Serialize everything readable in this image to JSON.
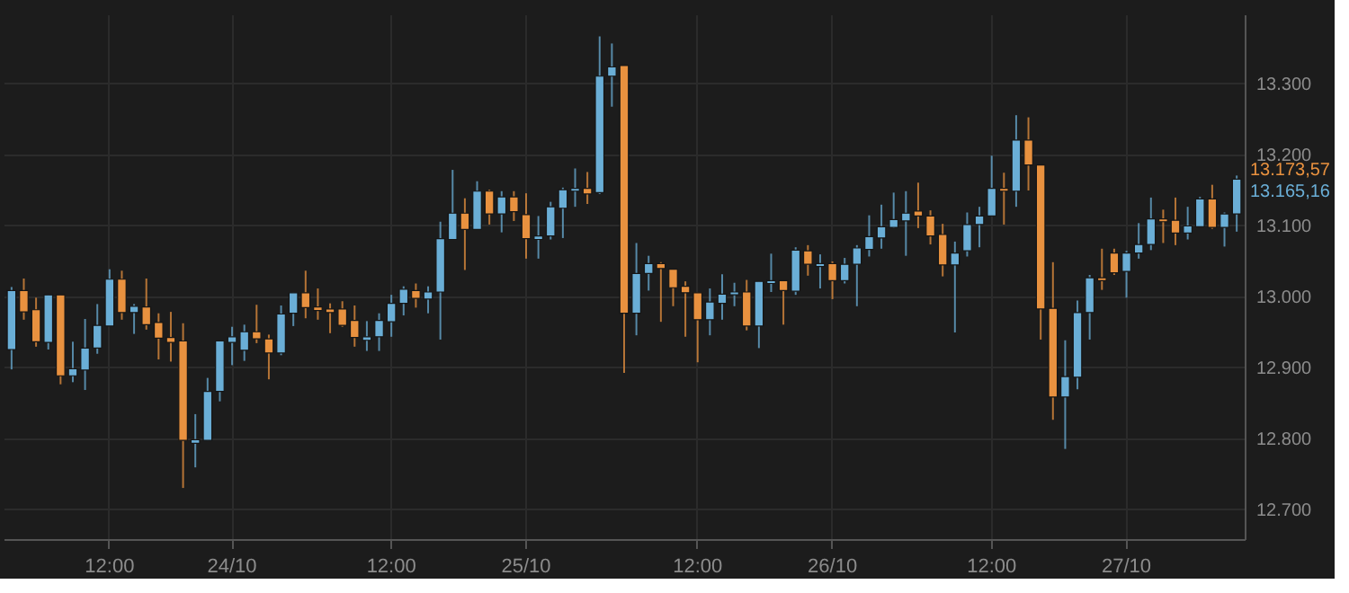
{
  "chart_data": {
    "type": "candlestick",
    "categories": [
      null,
      null,
      null,
      null,
      null,
      null,
      null,
      null,
      "12:00",
      null,
      null,
      null,
      null,
      null,
      null,
      null,
      null,
      null,
      "24/10",
      null,
      null,
      null,
      null,
      null,
      null,
      null,
      null,
      null,
      null,
      null,
      null,
      "12:00",
      null,
      null,
      null,
      null,
      null,
      null,
      null,
      null,
      null,
      null,
      "25/10",
      null,
      null,
      null,
      null,
      null,
      null,
      null,
      null,
      null,
      null,
      null,
      null,
      null,
      "12:00",
      null,
      null,
      null,
      null,
      null,
      null,
      null,
      null,
      null,
      null,
      "26/10",
      null,
      null,
      null,
      null,
      null,
      null,
      null,
      null,
      null,
      null,
      null,
      null,
      "12:00",
      null,
      null,
      null,
      null,
      null,
      null,
      null,
      null,
      null,
      null,
      "27/10",
      null,
      null,
      null,
      null,
      null,
      null,
      null,
      null,
      null
    ],
    "ohlc": [
      [
        12925,
        13013,
        12897,
        13008
      ],
      [
        13008,
        13025,
        12967,
        12978
      ],
      [
        12981,
        12998,
        12929,
        12936
      ],
      [
        12935,
        13002,
        12925,
        13002
      ],
      [
        13002,
        13002,
        12876,
        12888
      ],
      [
        12888,
        12936,
        12879,
        12898
      ],
      [
        12896,
        12968,
        12868,
        12927
      ],
      [
        12927,
        12989,
        12919,
        12959
      ],
      [
        12958,
        13038,
        12958,
        13024
      ],
      [
        13024,
        13036,
        12967,
        12977
      ],
      [
        12977,
        12989,
        12947,
        12986
      ],
      [
        12985,
        13025,
        12953,
        12960
      ],
      [
        12963,
        12976,
        12911,
        12941
      ],
      [
        12942,
        12978,
        12908,
        12935
      ],
      [
        12937,
        12962,
        12730,
        12797
      ],
      [
        12793,
        12834,
        12759,
        12798
      ],
      [
        12797,
        12885,
        12797,
        12866
      ],
      [
        12866,
        12937,
        12852,
        12937
      ],
      [
        12935,
        12957,
        12903,
        12943
      ],
      [
        12924,
        12960,
        12909,
        12950
      ],
      [
        12950,
        12988,
        12934,
        12940
      ],
      [
        12940,
        12946,
        12883,
        12920
      ],
      [
        12920,
        12987,
        12917,
        12975
      ],
      [
        12976,
        13005,
        12958,
        13005
      ],
      [
        13005,
        13036,
        12969,
        12984
      ],
      [
        12985,
        13011,
        12967,
        12980
      ],
      [
        12982,
        12990,
        12948,
        12977
      ],
      [
        12982,
        12993,
        12957,
        12959
      ],
      [
        12966,
        12987,
        12929,
        12942
      ],
      [
        12938,
        12965,
        12923,
        12943
      ],
      [
        12943,
        12976,
        12923,
        12966
      ],
      [
        12964,
        13002,
        12943,
        12990
      ],
      [
        12990,
        13014,
        12973,
        13010
      ],
      [
        13008,
        13018,
        12984,
        12997
      ],
      [
        12996,
        13014,
        12976,
        13006
      ],
      [
        13006,
        13105,
        12939,
        13081
      ],
      [
        13080,
        13178,
        13080,
        13117
      ],
      [
        13117,
        13138,
        13037,
        13094
      ],
      [
        13094,
        13162,
        13094,
        13148
      ],
      [
        13148,
        13150,
        13101,
        13116
      ],
      [
        13116,
        13148,
        13090,
        13140
      ],
      [
        13140,
        13148,
        13106,
        13119
      ],
      [
        13115,
        13145,
        13053,
        13081
      ],
      [
        13080,
        13113,
        13053,
        13085
      ],
      [
        13085,
        13133,
        13080,
        13126
      ],
      [
        13124,
        13153,
        13082,
        13150
      ],
      [
        13148,
        13180,
        13126,
        13152
      ],
      [
        13152,
        13175,
        13130,
        13144
      ],
      [
        13146,
        13366,
        13144,
        13310
      ],
      [
        13310,
        13356,
        13267,
        13323
      ],
      [
        13325,
        13325,
        12892,
        12976
      ],
      [
        12976,
        13075,
        12945,
        13032
      ],
      [
        13032,
        13057,
        13008,
        13046
      ],
      [
        13046,
        13048,
        12964,
        13039
      ],
      [
        13038,
        13038,
        12986,
        13012
      ],
      [
        13014,
        13021,
        12943,
        13005
      ],
      [
        13005,
        13005,
        12907,
        12967
      ],
      [
        12967,
        13011,
        12945,
        12992
      ],
      [
        12990,
        13031,
        12967,
        13003
      ],
      [
        13002,
        13019,
        12986,
        13006
      ],
      [
        13006,
        13023,
        12952,
        12958
      ],
      [
        12958,
        13021,
        12927,
        13021
      ],
      [
        13018,
        13060,
        13006,
        13022
      ],
      [
        13022,
        13022,
        12960,
        13008
      ],
      [
        13007,
        13069,
        13002,
        13065
      ],
      [
        13064,
        13072,
        13029,
        13045
      ],
      [
        13042,
        13059,
        13011,
        13046
      ],
      [
        13046,
        13049,
        12996,
        13022
      ],
      [
        13022,
        13054,
        13018,
        13045
      ],
      [
        13045,
        13072,
        12986,
        13068
      ],
      [
        13066,
        13114,
        13056,
        13084
      ],
      [
        13082,
        13129,
        13067,
        13098
      ],
      [
        13097,
        13146,
        13096,
        13108
      ],
      [
        13106,
        13148,
        13057,
        13117
      ],
      [
        13120,
        13160,
        13096,
        13113
      ],
      [
        13113,
        13121,
        13073,
        13085
      ],
      [
        13087,
        13102,
        13028,
        13044
      ],
      [
        13044,
        13077,
        12949,
        13061
      ],
      [
        13064,
        13118,
        13056,
        13101
      ],
      [
        13101,
        13126,
        13069,
        13113
      ],
      [
        13113,
        13198,
        13113,
        13152
      ],
      [
        13152,
        13174,
        13101,
        13148
      ],
      [
        13148,
        13255,
        13126,
        13220
      ],
      [
        13220,
        13252,
        13149,
        13185
      ],
      [
        13185,
        13185,
        12939,
        12982
      ],
      [
        12983,
        13048,
        12826,
        12858
      ],
      [
        12858,
        12938,
        12785,
        12887
      ],
      [
        12886,
        12994,
        12869,
        12977
      ],
      [
        12977,
        13030,
        12939,
        13026
      ],
      [
        13026,
        13067,
        13009,
        13022
      ],
      [
        13061,
        13067,
        13030,
        13033
      ],
      [
        13035,
        13064,
        12998,
        13061
      ],
      [
        13061,
        13103,
        13053,
        13073
      ],
      [
        13073,
        13139,
        13065,
        13109
      ],
      [
        13109,
        13122,
        13075,
        13105
      ],
      [
        13107,
        13139,
        13072,
        13089
      ],
      [
        13089,
        13126,
        13080,
        13099
      ],
      [
        13098,
        13140,
        13098,
        13137
      ],
      [
        13137,
        13157,
        13095,
        13097
      ],
      [
        13097,
        13118,
        13070,
        13116
      ],
      [
        13116,
        13170,
        13091,
        13165
      ]
    ],
    "colors": [
      "#6aaed6",
      "#e8913f",
      "#e8913f",
      "#6aaed6",
      "#e8913f",
      "#6aaed6",
      "#6aaed6",
      "#6aaed6",
      "#6aaed6",
      "#e8913f",
      "#6aaed6",
      "#e8913f",
      "#e8913f",
      "#e8913f",
      "#e8913f",
      "#6aaed6",
      "#6aaed6",
      "#6aaed6",
      "#6aaed6",
      "#6aaed6",
      "#e8913f",
      "#e8913f",
      "#6aaed6",
      "#6aaed6",
      "#e8913f",
      "#e8913f",
      "#e8913f",
      "#e8913f",
      "#e8913f",
      "#6aaed6",
      "#6aaed6",
      "#6aaed6",
      "#6aaed6",
      "#e8913f",
      "#6aaed6",
      "#6aaed6",
      "#6aaed6",
      "#e8913f",
      "#6aaed6",
      "#e8913f",
      "#6aaed6",
      "#e8913f",
      "#e8913f",
      "#6aaed6",
      "#6aaed6",
      "#6aaed6",
      "#6aaed6",
      "#e8913f",
      "#6aaed6",
      "#6aaed6",
      "#e8913f",
      "#6aaed6",
      "#6aaed6",
      "#e8913f",
      "#e8913f",
      "#e8913f",
      "#e8913f",
      "#6aaed6",
      "#6aaed6",
      "#6aaed6",
      "#e8913f",
      "#6aaed6",
      "#6aaed6",
      "#e8913f",
      "#6aaed6",
      "#e8913f",
      "#6aaed6",
      "#e8913f",
      "#6aaed6",
      "#6aaed6",
      "#6aaed6",
      "#6aaed6",
      "#6aaed6",
      "#6aaed6",
      "#e8913f",
      "#e8913f",
      "#e8913f",
      "#6aaed6",
      "#6aaed6",
      "#6aaed6",
      "#6aaed6",
      "#e8913f",
      "#6aaed6",
      "#e8913f",
      "#e8913f",
      "#e8913f",
      "#6aaed6",
      "#6aaed6",
      "#6aaed6",
      "#e8913f",
      "#e8913f",
      "#6aaed6",
      "#6aaed6",
      "#6aaed6",
      "#e8913f",
      "#e8913f",
      "#6aaed6",
      "#6aaed6",
      "#e8913f",
      "#6aaed6",
      "#6aaed6"
    ],
    "ylim": [
      12658,
      13397
    ],
    "yticks": [
      {
        "value": 12700,
        "label": "12.700"
      },
      {
        "value": 12800,
        "label": "12.800"
      },
      {
        "value": 12900,
        "label": "12.900"
      },
      {
        "value": 13000,
        "label": "13.000"
      },
      {
        "value": 13100,
        "label": "13.100"
      },
      {
        "value": 13200,
        "label": "13.200"
      },
      {
        "value": 13300,
        "label": "13.300"
      }
    ],
    "grid": true,
    "annotations": [
      "13.173,57",
      "13.165,16"
    ]
  }
}
